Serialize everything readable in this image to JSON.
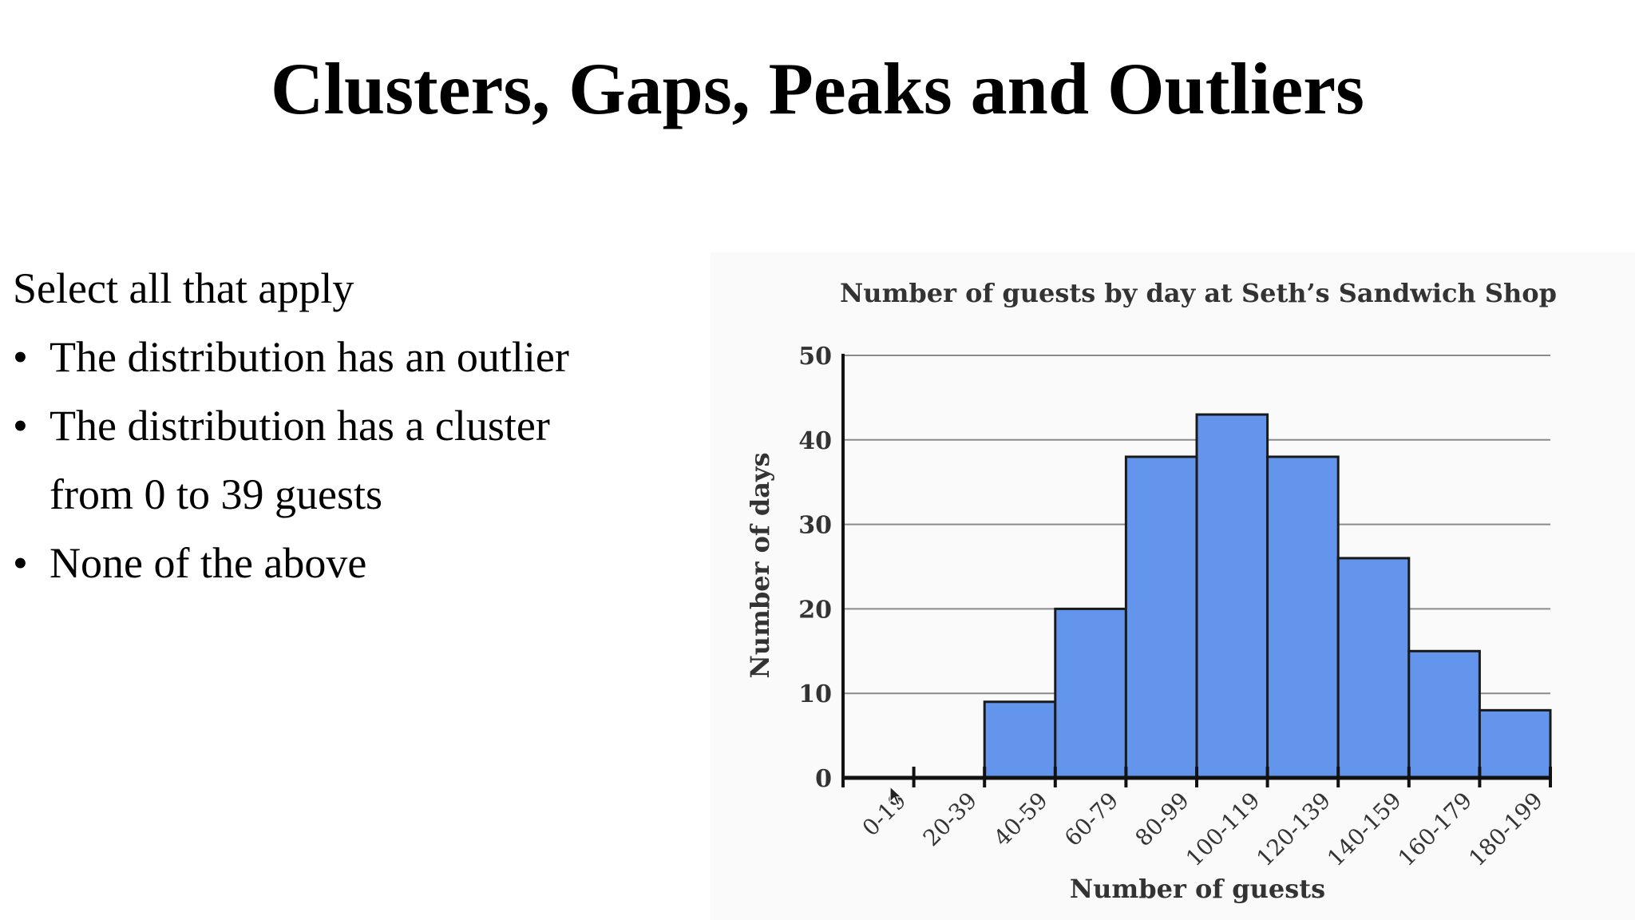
{
  "slide": {
    "title": "Clusters, Gaps, Peaks and Outliers"
  },
  "question": {
    "prompt": "Select all that apply",
    "bullet": "•",
    "options": [
      "The distribution has an outlier",
      "The distribution has a cluster from 0 to 39 guests",
      "None of the above"
    ]
  },
  "chart_data": {
    "type": "bar",
    "title": "Number of guests by day at Seth’s Sandwich Shop",
    "xlabel": "Number of guests",
    "ylabel": "Number of days",
    "categories": [
      "0-19",
      "20-39",
      "40-59",
      "60-79",
      "80-99",
      "100-119",
      "120-139",
      "140-159",
      "160-179",
      "180-199"
    ],
    "values": [
      0,
      0,
      9,
      20,
      38,
      43,
      38,
      26,
      15,
      8
    ],
    "ylim": [
      0,
      50
    ],
    "yticks": [
      0,
      10,
      20,
      30,
      40,
      50
    ],
    "grid": true,
    "bar_color": "#6495ed",
    "bar_edge_color": "#1a1a1a"
  }
}
